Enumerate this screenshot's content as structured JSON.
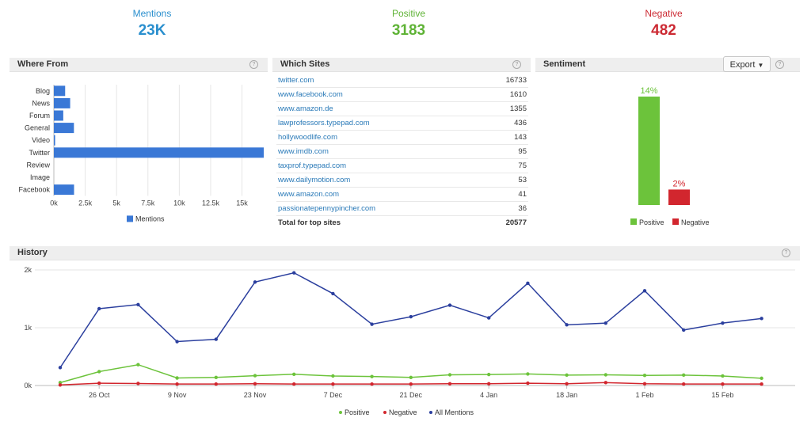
{
  "kpis": {
    "mentions": {
      "label": "Mentions",
      "value": "23K",
      "color": "#2a8fce"
    },
    "positive": {
      "label": "Positive",
      "value": "3183",
      "color": "#5fb336"
    },
    "negative": {
      "label": "Negative",
      "value": "482",
      "color": "#cc2a33"
    }
  },
  "where_from": {
    "title": "Where From",
    "help": "?",
    "legend": "Mentions",
    "chart_data": {
      "type": "bar",
      "orientation": "horizontal",
      "categories": [
        "Blog",
        "News",
        "Forum",
        "General",
        "Video",
        "Twitter",
        "Review",
        "Image",
        "Facebook"
      ],
      "values": [
        900,
        1300,
        750,
        1600,
        100,
        16733,
        0,
        0,
        1610
      ],
      "xticks": [
        "0k",
        "2.5k",
        "5k",
        "7.5k",
        "10k",
        "12.5k",
        "15k"
      ],
      "xlim": [
        0,
        16733
      ],
      "series_name": "Mentions",
      "color": "#3a78d6",
      "grid": true
    }
  },
  "which_sites": {
    "title": "Which Sites",
    "help": "?",
    "rows": [
      {
        "site": "twitter.com",
        "count": "16733"
      },
      {
        "site": "www.facebook.com",
        "count": "1610"
      },
      {
        "site": "www.amazon.de",
        "count": "1355"
      },
      {
        "site": "lawprofessors.typepad.com",
        "count": "436"
      },
      {
        "site": "hollywoodlife.com",
        "count": "143"
      },
      {
        "site": "www.imdb.com",
        "count": "95"
      },
      {
        "site": "taxprof.typepad.com",
        "count": "75"
      },
      {
        "site": "www.dailymotion.com",
        "count": "53"
      },
      {
        "site": "www.amazon.com",
        "count": "41"
      },
      {
        "site": "passionatepennypincher.com",
        "count": "36"
      }
    ],
    "total_label": "Total for top sites",
    "total_value": "20577"
  },
  "sentiment": {
    "title": "Sentiment",
    "help": "?",
    "export_label": "Export",
    "chart_data": {
      "type": "bar",
      "categories": [
        "Positive",
        "Negative"
      ],
      "values": [
        14,
        2
      ],
      "labels": [
        "14%",
        "2%"
      ],
      "colors": [
        "#6cc33b",
        "#d2262e"
      ],
      "legend": [
        "Positive",
        "Negative"
      ]
    }
  },
  "history": {
    "title": "History",
    "help": "?",
    "chart_data": {
      "type": "line",
      "y_ticks": [
        "2k",
        "1k",
        "0k"
      ],
      "ylim": [
        0,
        2000
      ],
      "x_ticks": [
        "26 Oct",
        "9 Nov",
        "23 Nov",
        "7 Dec",
        "21 Dec",
        "4 Jan",
        "18 Jan",
        "1 Feb",
        "15 Feb"
      ],
      "series": [
        {
          "name": "Positive",
          "color": "#6cc33b",
          "values": [
            50,
            240,
            360,
            130,
            140,
            170,
            195,
            165,
            155,
            140,
            185,
            190,
            200,
            180,
            185,
            175,
            180,
            165,
            125
          ]
        },
        {
          "name": "Negative",
          "color": "#d2262e",
          "values": [
            10,
            40,
            35,
            25,
            25,
            30,
            25,
            25,
            25,
            25,
            30,
            30,
            40,
            30,
            50,
            30,
            25,
            25,
            25
          ]
        },
        {
          "name": "All Mentions",
          "color": "#2b3f9e",
          "values": [
            310,
            1330,
            1400,
            760,
            800,
            1790,
            1950,
            1590,
            1060,
            1190,
            1390,
            1170,
            1770,
            1050,
            1080,
            1640,
            960,
            1080,
            1160
          ]
        }
      ],
      "legend": [
        "Positive",
        "Negative",
        "All Mentions"
      ],
      "grid": true
    }
  }
}
